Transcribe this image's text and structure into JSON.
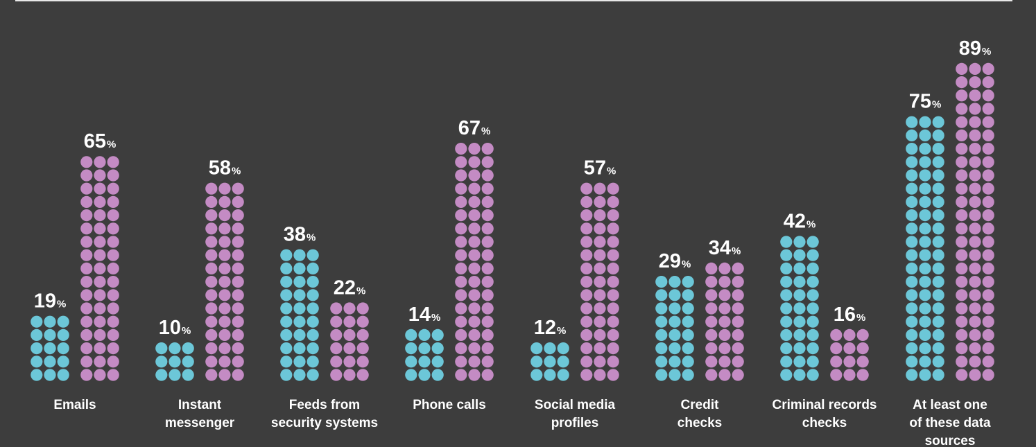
{
  "chart_data": {
    "type": "bar",
    "subtype": "dot-column",
    "grid": false,
    "legend": "none",
    "colors": {
      "series_1": "#6cc7d8",
      "series_2": "#c48bc4",
      "background": "#3d3d3d",
      "text": "#ffffff"
    },
    "value_suffix": "%",
    "categories": [
      [
        "Emails"
      ],
      [
        "Instant",
        "messenger"
      ],
      [
        "Feeds from",
        "security systems"
      ],
      [
        "Phone calls"
      ],
      [
        "Social media",
        "profiles"
      ],
      [
        "Credit",
        "checks"
      ],
      [
        "Criminal records",
        "checks"
      ],
      [
        "At least one",
        "of these data",
        "sources"
      ]
    ],
    "series": [
      {
        "values": [
          19,
          10,
          38,
          14,
          12,
          29,
          42,
          75
        ]
      },
      {
        "values": [
          65,
          58,
          22,
          67,
          57,
          34,
          16,
          89
        ]
      }
    ]
  }
}
